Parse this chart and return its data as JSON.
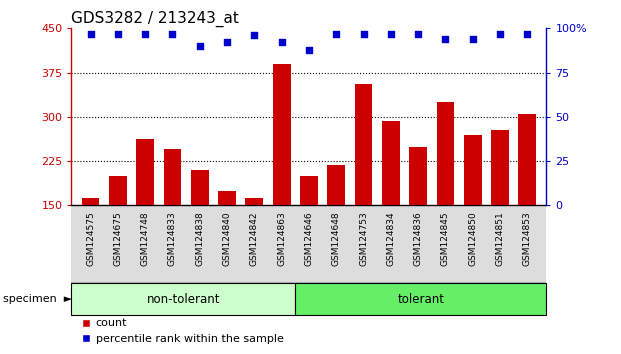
{
  "title": "GDS3282 / 213243_at",
  "categories": [
    "GSM124575",
    "GSM124675",
    "GSM124748",
    "GSM124833",
    "GSM124838",
    "GSM124840",
    "GSM124842",
    "GSM124863",
    "GSM124646",
    "GSM124648",
    "GSM124753",
    "GSM124834",
    "GSM124836",
    "GSM124845",
    "GSM124850",
    "GSM124851",
    "GSM124853"
  ],
  "bar_values": [
    163,
    200,
    262,
    245,
    210,
    175,
    163,
    390,
    200,
    218,
    355,
    293,
    248,
    325,
    270,
    278,
    305
  ],
  "percentile_values": [
    97,
    97,
    97,
    97,
    90,
    92,
    96,
    92,
    88,
    97,
    97,
    97,
    97,
    94,
    94,
    97,
    97
  ],
  "bar_color": "#cc0000",
  "percentile_color": "#0000cc",
  "non_tolerant_count": 8,
  "tolerant_count": 9,
  "non_tolerant_label": "non-tolerant",
  "tolerant_label": "tolerant",
  "non_tolerant_color": "#ccffcc",
  "tolerant_color": "#66ee66",
  "ylim_left": [
    150,
    450
  ],
  "ylim_right": [
    0,
    100
  ],
  "yticks_left": [
    150,
    225,
    300,
    375,
    450
  ],
  "yticks_right": [
    0,
    25,
    50,
    75,
    100
  ],
  "right_tick_labels": [
    "0",
    "25",
    "50",
    "75",
    "100%"
  ],
  "left_tick_labels": [
    "150",
    "225",
    "300",
    "375",
    "450"
  ],
  "grid_values": [
    225,
    300,
    375
  ],
  "legend_count_label": "count",
  "legend_percentile_label": "percentile rank within the sample",
  "specimen_label": "specimen",
  "title_fontsize": 11,
  "tick_fontsize": 8,
  "bar_width": 0.65,
  "label_area_color": "#dddddd",
  "fig_width": 6.21,
  "fig_height": 3.54
}
